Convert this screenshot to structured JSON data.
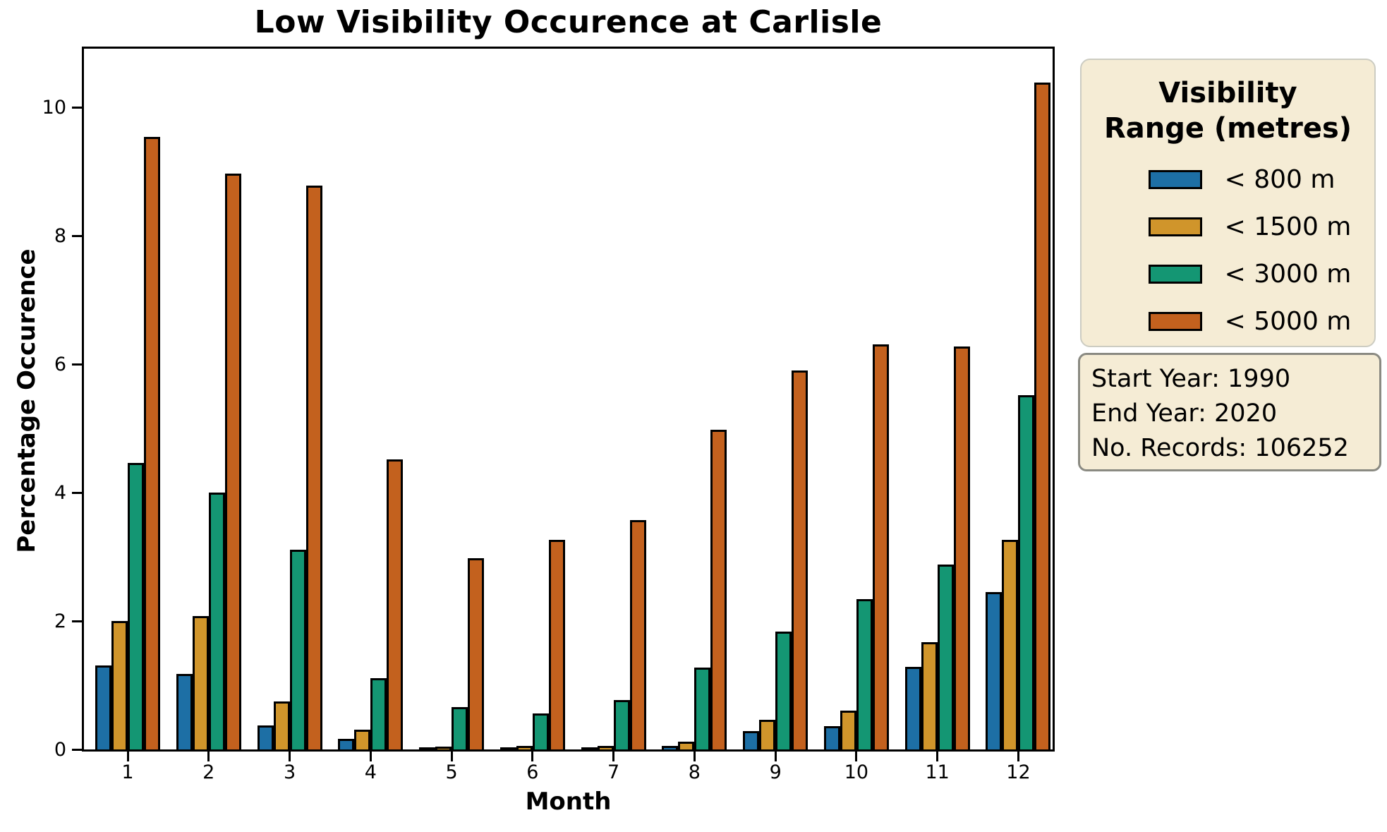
{
  "chart": {
    "title": "Low Visibility Occurence at Carlisle",
    "xlabel": "Month",
    "ylabel": "Percentage Occurence"
  },
  "legend": {
    "title_line1": "Visibility",
    "title_line2": "Range (metres)",
    "bg_color": "#F5ECD5"
  },
  "info_box": {
    "line1": "Start Year: 1990",
    "line2": "End Year: 2020",
    "line3": "No. Records: 106252"
  },
  "colors": {
    "blue": "#1D6FA5",
    "gold": "#D0952B",
    "green": "#149673",
    "orange": "#C3611E",
    "panel_bg": "#F5ECD5",
    "axis": "#000000"
  },
  "chart_data": {
    "type": "bar",
    "title": "Low Visibility Occurence at Carlisle",
    "xlabel": "Month",
    "ylabel": "Percentage Occurence",
    "categories": [
      "1",
      "2",
      "3",
      "4",
      "5",
      "6",
      "7",
      "8",
      "9",
      "10",
      "11",
      "12"
    ],
    "series": [
      {
        "name": "< 800 m",
        "color": "#1D6FA5",
        "values": [
          1.31,
          1.18,
          0.37,
          0.16,
          0.02,
          0.02,
          0.01,
          0.05,
          0.29,
          0.36,
          1.29,
          2.45
        ]
      },
      {
        "name": "< 1500 m",
        "color": "#D0952B",
        "values": [
          2.0,
          2.08,
          0.75,
          0.31,
          0.04,
          0.05,
          0.06,
          0.12,
          0.46,
          0.61,
          1.67,
          3.27
        ]
      },
      {
        "name": "< 3000 m",
        "color": "#149673",
        "values": [
          4.47,
          4.0,
          3.11,
          1.11,
          0.66,
          0.56,
          0.77,
          1.28,
          1.84,
          2.34,
          2.88,
          5.52
        ]
      },
      {
        "name": "< 5000 m",
        "color": "#C3611E",
        "values": [
          9.55,
          8.97,
          8.79,
          4.52,
          2.98,
          3.27,
          3.57,
          4.98,
          5.91,
          6.31,
          6.28,
          10.39
        ]
      }
    ],
    "ylim": [
      0,
      10.92
    ],
    "yticks": [
      0,
      2,
      4,
      6,
      8,
      10
    ],
    "grid": false,
    "legend_title": "Visibility Range (metres)",
    "legend_position": "outside-right"
  }
}
